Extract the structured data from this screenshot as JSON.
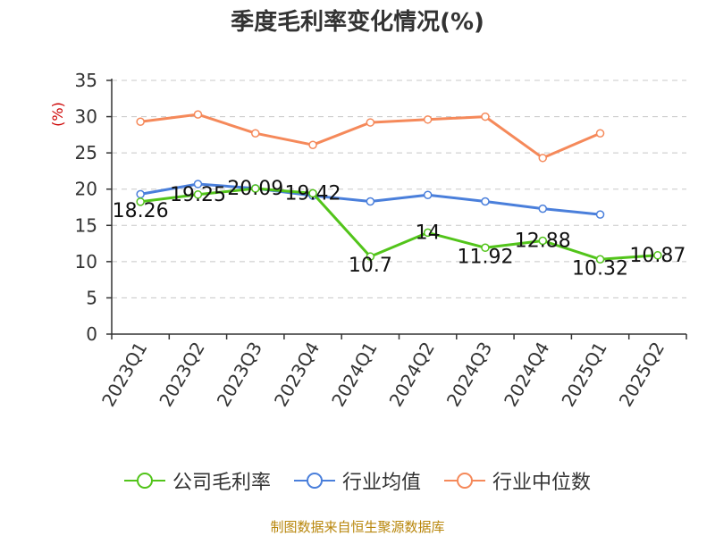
{
  "chart_data": {
    "type": "line",
    "title": "季度毛利率变化情况(%)",
    "ylabel": "(%)",
    "xlabel": "",
    "categories": [
      "2023Q1",
      "2023Q2",
      "2023Q3",
      "2023Q4",
      "2024Q1",
      "2024Q2",
      "2024Q3",
      "2024Q4",
      "2025Q1",
      "2025Q2"
    ],
    "ylim": [
      0,
      35
    ],
    "yticks": [
      0,
      5,
      10,
      15,
      20,
      25,
      30,
      35
    ],
    "grid": true,
    "legend_position": "bottom",
    "series": [
      {
        "name": "公司毛利率",
        "color": "#52c41a",
        "values": [
          18.26,
          19.25,
          20.09,
          19.42,
          10.7,
          14,
          11.92,
          12.88,
          10.32,
          10.87
        ],
        "labels": [
          "18.26",
          "19.25",
          "20.09",
          "19.42",
          "10.7",
          "14",
          "11.92",
          "12.88",
          "10.32",
          "10.87"
        ]
      },
      {
        "name": "行业均值",
        "color": "#4a7fdb",
        "values": [
          19.3,
          20.7,
          20.1,
          19.1,
          18.3,
          19.2,
          18.3,
          17.3,
          16.5,
          null
        ]
      },
      {
        "name": "行业中位数",
        "color": "#f5895a",
        "values": [
          29.3,
          30.3,
          27.7,
          26.1,
          29.2,
          29.6,
          30.0,
          24.3,
          27.7,
          null
        ]
      }
    ],
    "source": "制图数据来自恒生聚源数据库"
  },
  "colors": {
    "axis": "#333333",
    "grid": "#c8c8c8",
    "ylabel": "#cc0000",
    "source": "#b8860b"
  }
}
